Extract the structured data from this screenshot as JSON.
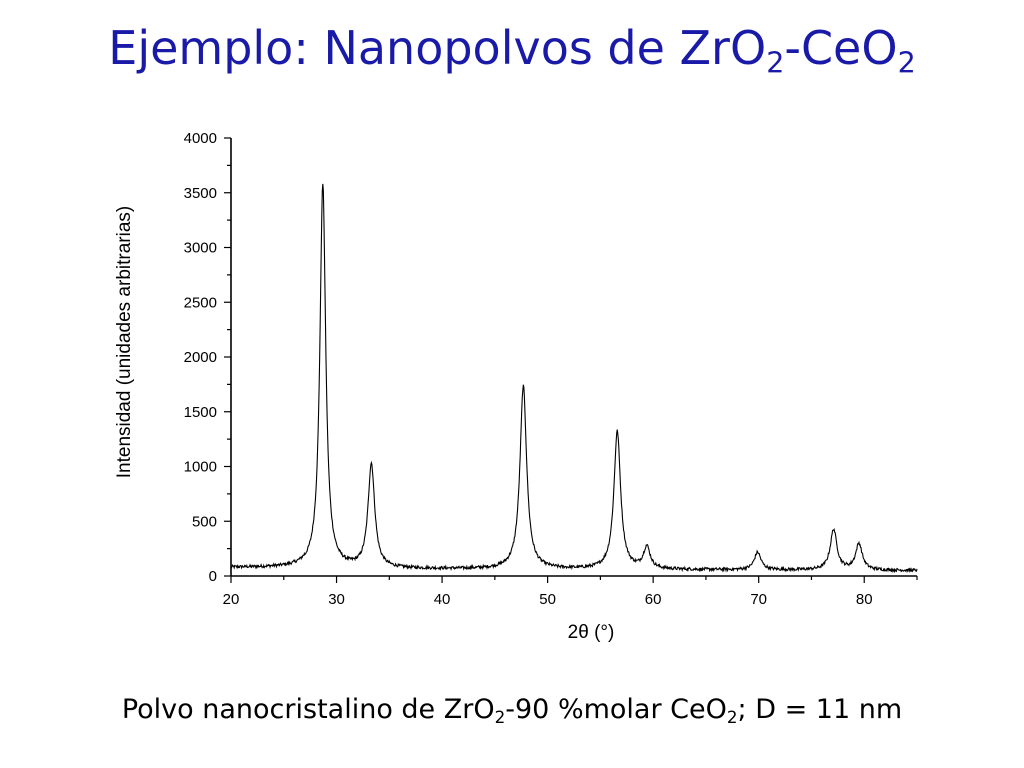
{
  "slide": {
    "title_main": "Ejemplo: Nanopolvos de ZrO",
    "title_sub1": "2",
    "title_dash": "-CeO",
    "title_sub2": "2",
    "caption_part1": "Polvo nanocristalino de ZrO",
    "caption_sub1": "2",
    "caption_part2": "-90 %molar CeO",
    "caption_sub2": "2",
    "caption_part3": "; D = 11 nm",
    "title_color": "#1a1aa8"
  },
  "chart_data": {
    "type": "line",
    "title": "",
    "xlabel": "2θ (°)",
    "ylabel": "Intensidad (unidades arbitrarias)",
    "xlim": [
      20,
      85
    ],
    "ylim": [
      0,
      4000
    ],
    "xticks": [
      20,
      30,
      40,
      50,
      60,
      70,
      80
    ],
    "yticks": [
      0,
      500,
      1000,
      1500,
      2000,
      2500,
      3000,
      3500,
      4000
    ],
    "grid": false,
    "line_color": "#000000",
    "baseline": 70,
    "peaks": [
      {
        "x": 28.7,
        "y": 3580
      },
      {
        "x": 33.3,
        "y": 1020
      },
      {
        "x": 47.7,
        "y": 1740
      },
      {
        "x": 56.6,
        "y": 1330
      },
      {
        "x": 59.4,
        "y": 270
      },
      {
        "x": 69.9,
        "y": 230
      },
      {
        "x": 77.1,
        "y": 440
      },
      {
        "x": 79.5,
        "y": 310
      }
    ]
  }
}
